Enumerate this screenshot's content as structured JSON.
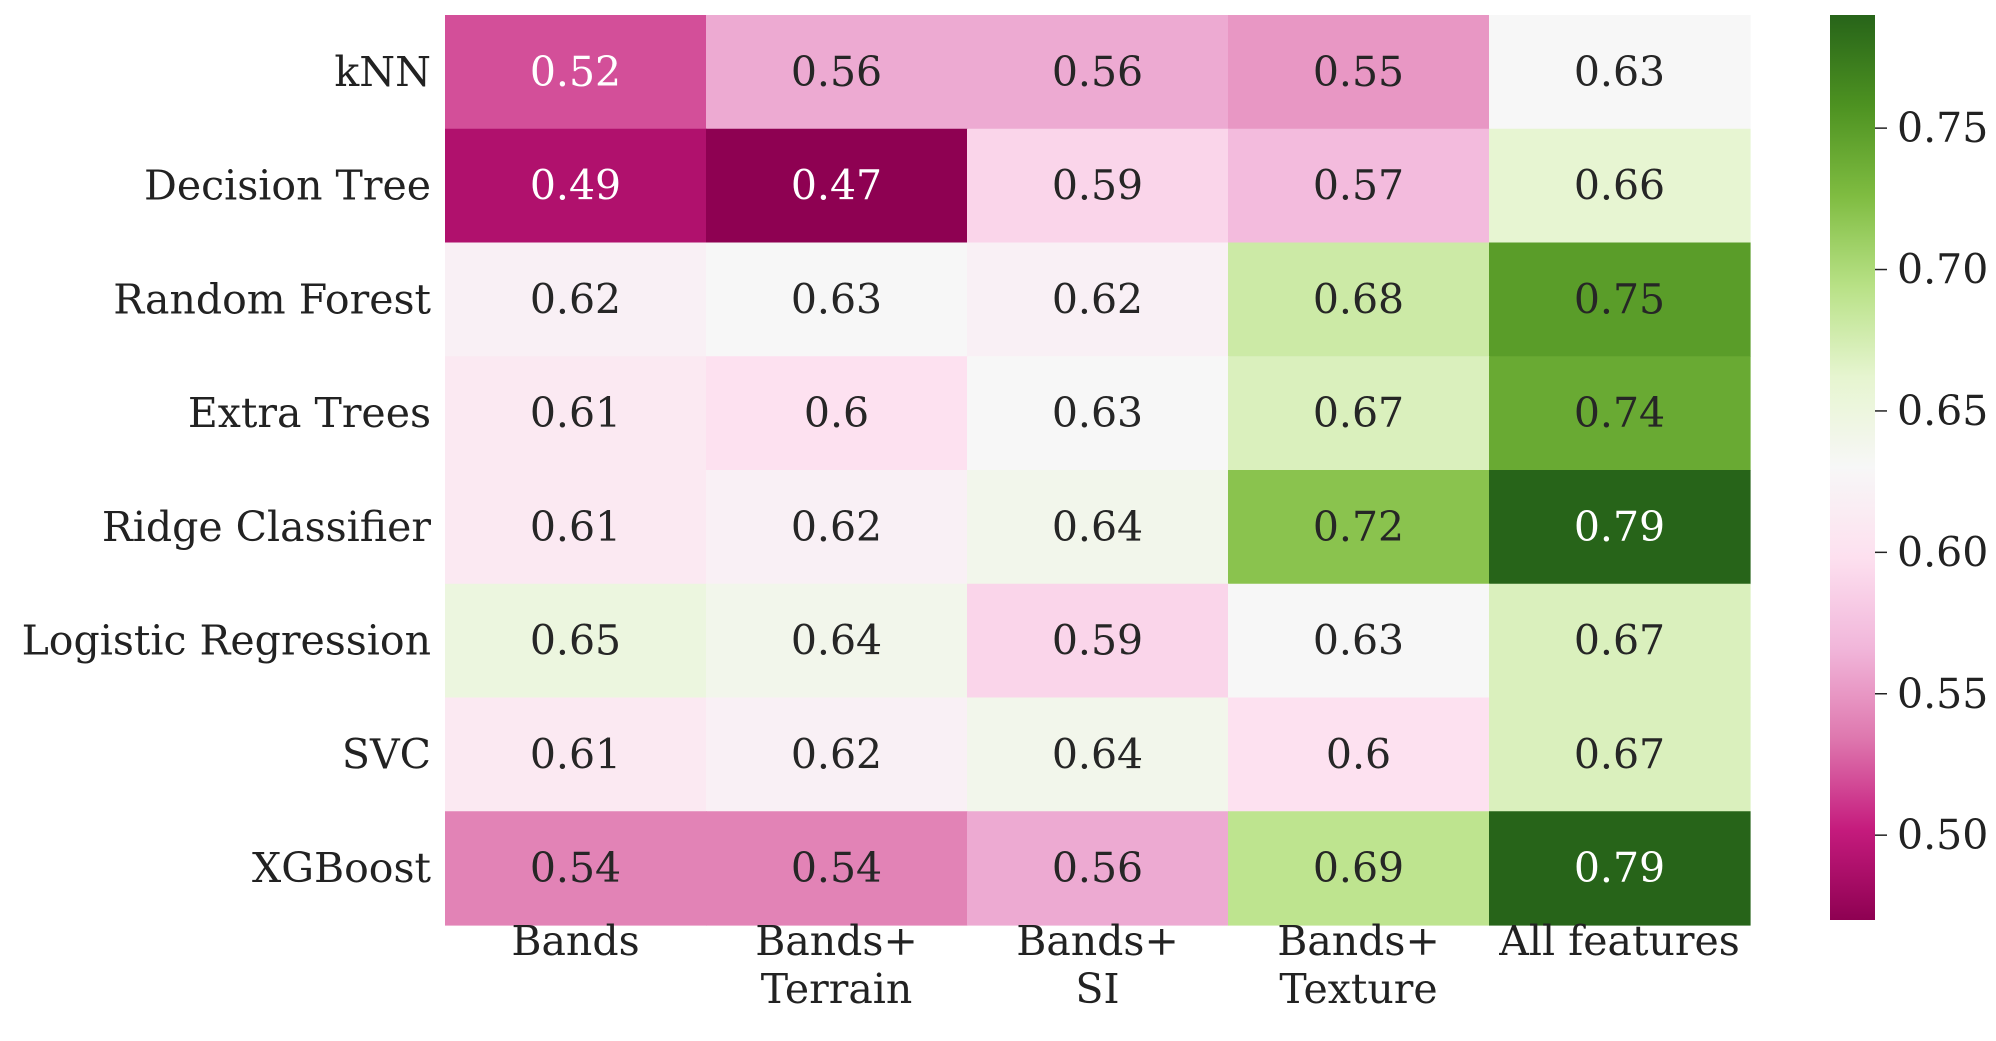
{
  "chart_data": {
    "type": "heatmap",
    "title": "",
    "xlabel": "",
    "ylabel": "",
    "rows": [
      "kNN",
      "Decision Tree",
      "Random Forest",
      "Extra Trees",
      "Ridge Classifier",
      "Logistic Regression",
      "SVC",
      "XGBoost"
    ],
    "columns": [
      [
        "Bands"
      ],
      [
        "Bands+",
        "Terrain"
      ],
      [
        "Bands+",
        "SI"
      ],
      [
        "Bands+",
        "Texture"
      ],
      [
        "All features"
      ]
    ],
    "values": [
      [
        0.52,
        0.56,
        0.56,
        0.55,
        0.63
      ],
      [
        0.49,
        0.47,
        0.59,
        0.57,
        0.66
      ],
      [
        0.62,
        0.63,
        0.62,
        0.68,
        0.75
      ],
      [
        0.61,
        0.6,
        0.63,
        0.67,
        0.74
      ],
      [
        0.61,
        0.62,
        0.64,
        0.72,
        0.79
      ],
      [
        0.65,
        0.64,
        0.59,
        0.63,
        0.67
      ],
      [
        0.61,
        0.62,
        0.64,
        0.6,
        0.67
      ],
      [
        0.54,
        0.54,
        0.56,
        0.69,
        0.79
      ]
    ],
    "colormap": "PiYG",
    "vmin": 0.47,
    "vmax": 0.79,
    "colorbar": {
      "ticks": [
        0.5,
        0.55,
        0.6,
        0.65,
        0.7,
        0.75
      ],
      "tick_labels": [
        "0.50",
        "0.55",
        "0.60",
        "0.65",
        "0.70",
        "0.75"
      ]
    }
  }
}
